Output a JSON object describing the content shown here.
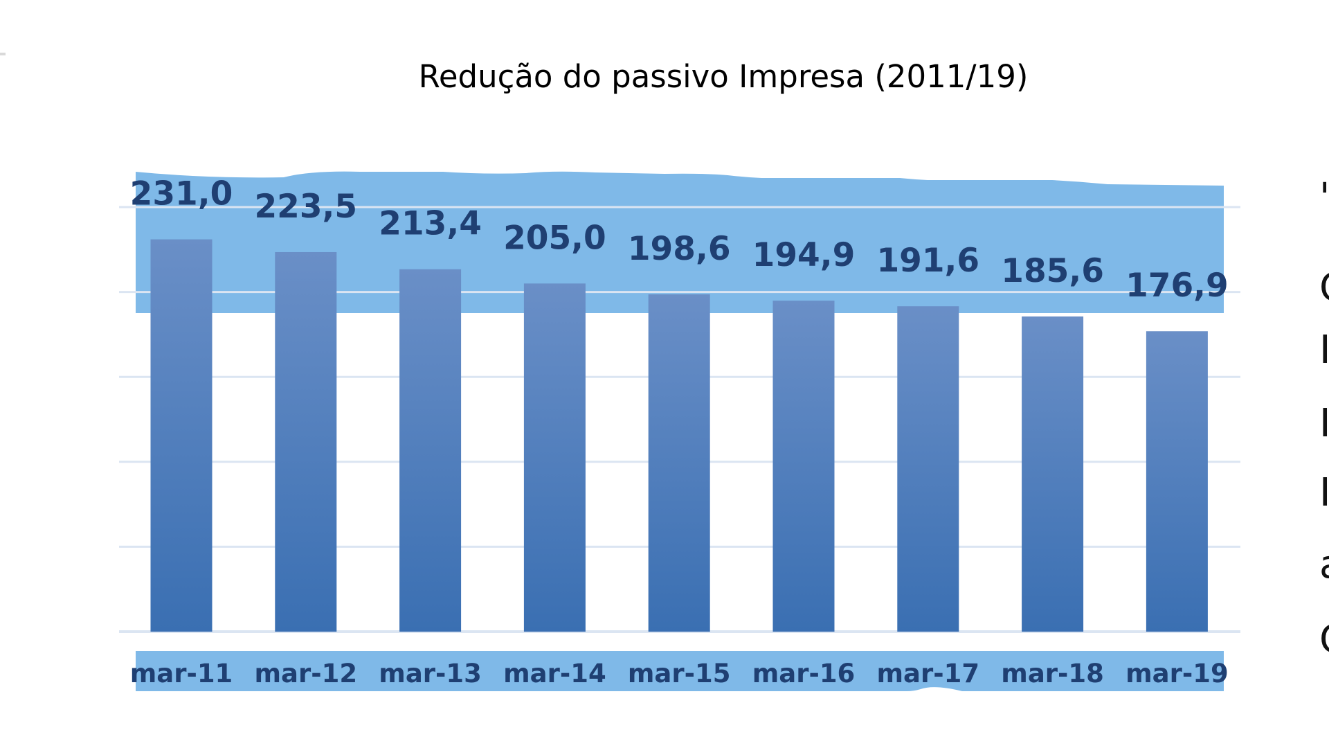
{
  "chart_data": {
    "type": "bar",
    "title": "Redução do passivo Impresa (2011/19)",
    "xlabel": "",
    "ylabel": "",
    "categories": [
      "mar-11",
      "mar-12",
      "mar-13",
      "mar-14",
      "mar-15",
      "mar-16",
      "mar-17",
      "mar-18",
      "mar-19"
    ],
    "series": [
      {
        "values": [
          231.0,
          223.5,
          213.4,
          205.0,
          198.6,
          194.9,
          191.6,
          185.6,
          176.9
        ]
      }
    ],
    "data_labels": [
      "231,0",
      "223,5",
      "213,4",
      "205,0",
      "198,6",
      "194,9",
      "191,6",
      "185,6",
      "176,9"
    ],
    "ylim": [
      0,
      250
    ],
    "grid": true,
    "legend": "none",
    "colors": {
      "bar_top": "#6a8fc7",
      "bar_bottom": "#3a6fb2",
      "highlight_band": "#7fb9e8",
      "gridline": "#dbe5f2",
      "label_text": "#1f3f72"
    }
  }
}
